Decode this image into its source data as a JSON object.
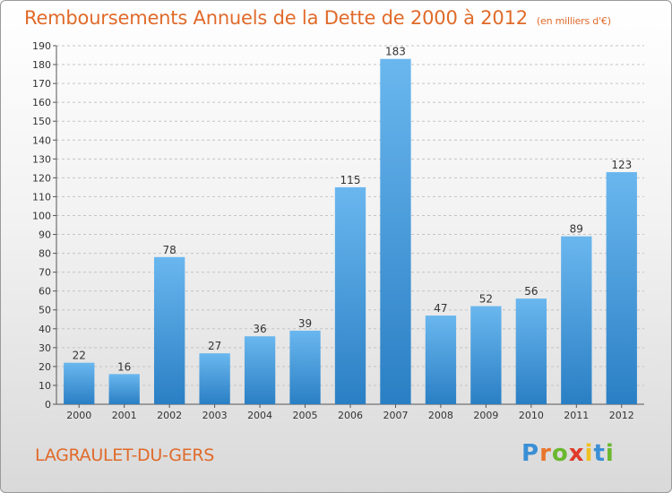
{
  "title": "Remboursements Annuels de la Dette de 2000 à 2012",
  "subtitle": "(en milliers d'€)",
  "commune": "LAGRAULET-DU-GERS",
  "brand": {
    "letters": [
      "P",
      "r",
      "o",
      "x",
      "i",
      "t",
      "i"
    ],
    "colors": [
      "#3a8fd6",
      "#e8752b",
      "#6ab82e",
      "#e03a2a",
      "#f0c020",
      "#3a8fd6",
      "#6ab82e"
    ]
  },
  "colors": {
    "accent": "#e06a2a",
    "bar_light": "#6ab7ef",
    "bar_dark": "#2a7fc4"
  },
  "chart_data": {
    "type": "bar",
    "title": "Remboursements Annuels de la Dette de 2000 à 2012",
    "categories": [
      "2000",
      "2001",
      "2002",
      "2003",
      "2004",
      "2005",
      "2006",
      "2007",
      "2008",
      "2009",
      "2010",
      "2011",
      "2012"
    ],
    "values": [
      22,
      16,
      78,
      27,
      36,
      39,
      115,
      183,
      47,
      52,
      56,
      89,
      123
    ],
    "ylim": [
      0,
      190
    ],
    "yticks": [
      0,
      10,
      20,
      30,
      40,
      50,
      60,
      70,
      80,
      90,
      100,
      110,
      120,
      130,
      140,
      150,
      160,
      170,
      180,
      190
    ],
    "grid": true,
    "data_labels": true
  }
}
